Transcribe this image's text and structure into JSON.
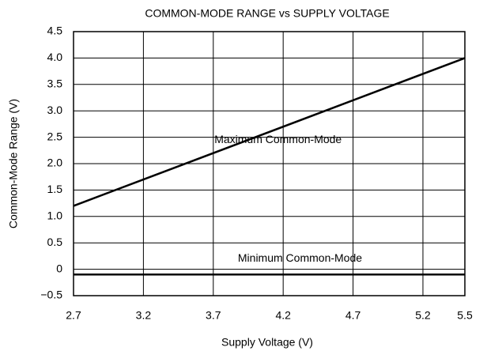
{
  "chart_data": {
    "type": "line",
    "title": "COMMON-MODE RANGE vs SUPPLY VOLTAGE",
    "x_label": "Supply Voltage (V)",
    "y_label": "Common-Mode Range (V)",
    "series": [
      {
        "name": "Maximum Common-Mode",
        "color": "#000000",
        "x": [
          2.7,
          5.5
        ],
        "values": [
          1.2,
          4.0
        ]
      },
      {
        "name": "Minimum Common-Mode",
        "color": "#000000",
        "x": [
          2.7,
          5.5
        ],
        "values": [
          -0.1,
          -0.1
        ]
      }
    ],
    "xlim": [
      2.7,
      5.5
    ],
    "xticks": [
      2.7,
      3.2,
      3.7,
      4.2,
      4.7,
      5.2,
      5.5
    ],
    "ylim": [
      -0.5,
      4.5
    ],
    "yticks": [
      {
        "value": -0.5,
        "label": "−0.5"
      },
      0,
      0.5,
      {
        "value": 1.0,
        "label": "1.0"
      },
      1.5,
      {
        "value": 2.0,
        "label": "2.0"
      },
      2.5,
      {
        "value": 3.0,
        "label": "3.0"
      },
      3.5,
      {
        "value": 4.0,
        "label": "4.0"
      },
      4.5
    ],
    "grid": true
  }
}
